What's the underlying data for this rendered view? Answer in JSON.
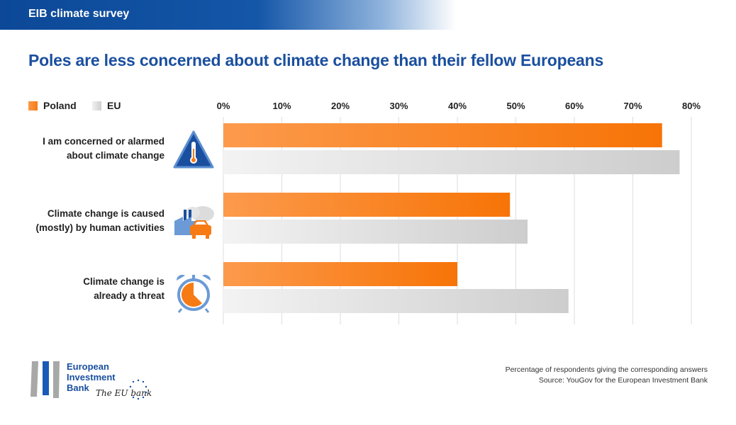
{
  "header": {
    "label": "EIB climate survey"
  },
  "title": "Poles are less concerned about climate change than their fellow Europeans",
  "chart_data": {
    "type": "bar",
    "orientation": "horizontal",
    "categories": [
      "I am concerned or alarmed about climate change",
      "Climate change is caused (mostly) by human activities",
      "Climate change is already a threat"
    ],
    "category_lines": [
      [
        "I am concerned or alarmed",
        "about climate change"
      ],
      [
        "Climate change is caused",
        "(mostly) by human activities"
      ],
      [
        "Climate change is",
        "already a threat"
      ]
    ],
    "series": [
      {
        "name": "Poland",
        "values": [
          75,
          49,
          40
        ],
        "color": "#f77b14"
      },
      {
        "name": "EU",
        "values": [
          78,
          52,
          59
        ],
        "color": "#d4d4d4"
      }
    ],
    "xlim": [
      0,
      80
    ],
    "ticks": [
      "0%",
      "10%",
      "20%",
      "30%",
      "40%",
      "50%",
      "60%",
      "70%",
      "80%"
    ],
    "tick_values": [
      0,
      10,
      20,
      30,
      40,
      50,
      60,
      70,
      80
    ],
    "axis_position": "top",
    "grid": true,
    "legend": "top-left"
  },
  "icons": [
    "warning-thermometer-icon",
    "factory-car-pollution-icon",
    "alarm-clock-icon"
  ],
  "footer": {
    "note": "Percentage of respondents giving the corresponding answers",
    "source": "Source: YouGov for the European Investment Bank"
  },
  "logo": {
    "text": [
      "European",
      "Investment",
      "Bank"
    ],
    "tagline": "The EU bank"
  }
}
